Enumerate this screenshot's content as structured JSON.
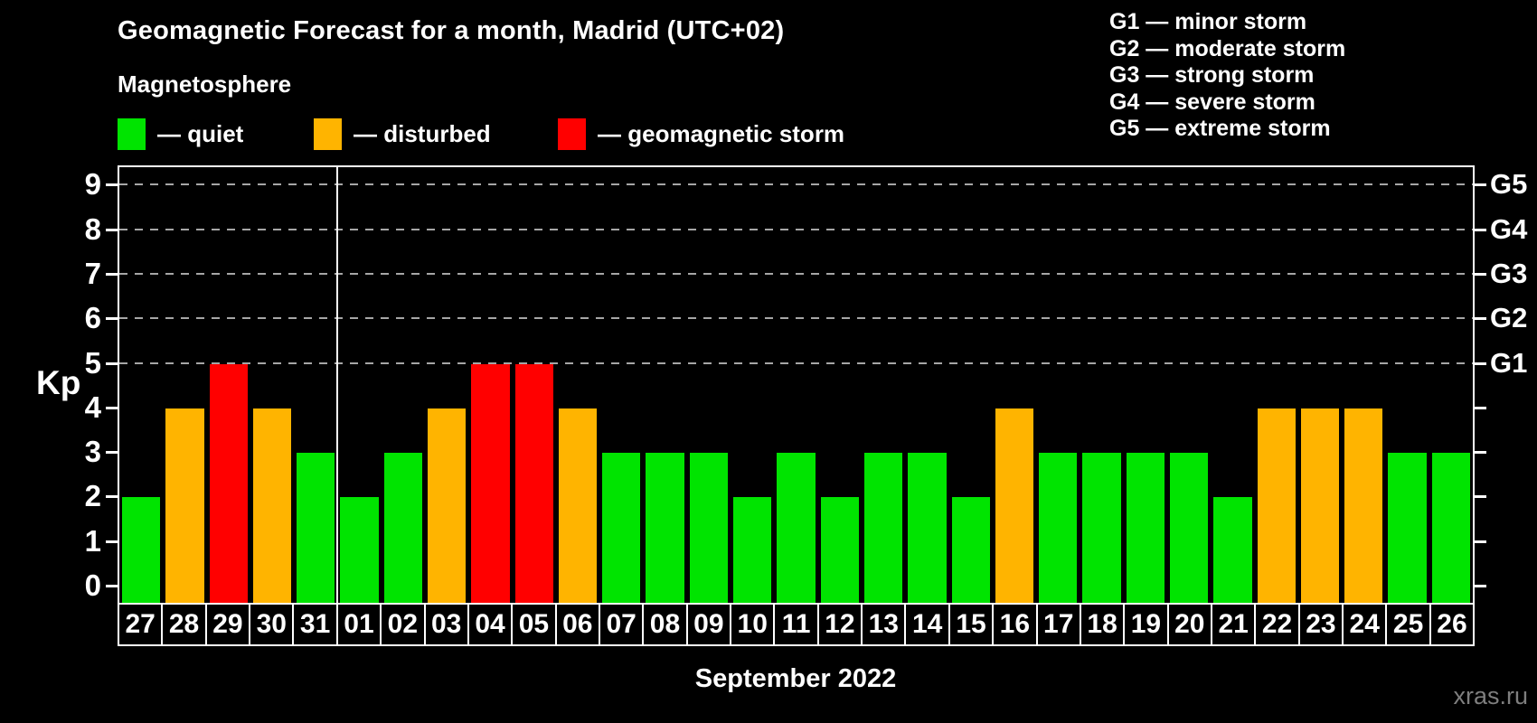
{
  "header": {
    "title": "Geomagnetic Forecast for a month, Madrid (UTC+02)",
    "subtitle": "Magnetosphere",
    "legend": [
      {
        "key": "quiet",
        "label": "— quiet",
        "color": "#00e400"
      },
      {
        "key": "disturbed",
        "label": "— disturbed",
        "color": "#ffb400"
      },
      {
        "key": "storm",
        "label": "— geomagnetic storm",
        "color": "#ff0000"
      }
    ],
    "g_legend": [
      "G1 — minor storm",
      "G2 — moderate storm",
      "G3 — strong storm",
      "G4 — severe storm",
      "G5 — extreme storm"
    ]
  },
  "chart_data": {
    "type": "bar",
    "title": "Geomagnetic Forecast for a month, Madrid (UTC+02)",
    "ylabel": "Kp",
    "xlabel": "September 2022",
    "ylim": [
      0,
      9
    ],
    "yticks": [
      0,
      1,
      2,
      3,
      4,
      5,
      6,
      7,
      8,
      9
    ],
    "gridlines_kp": [
      5,
      6,
      7,
      8,
      9
    ],
    "grid": "dashed",
    "right_axis_labels": [
      {
        "label": "G1",
        "kp": 5
      },
      {
        "label": "G2",
        "kp": 6
      },
      {
        "label": "G3",
        "kp": 7
      },
      {
        "label": "G4",
        "kp": 8
      },
      {
        "label": "G5",
        "kp": 9
      }
    ],
    "categories": [
      "27",
      "28",
      "29",
      "30",
      "31",
      "01",
      "02",
      "03",
      "04",
      "05",
      "06",
      "07",
      "08",
      "09",
      "10",
      "11",
      "12",
      "13",
      "14",
      "15",
      "16",
      "17",
      "18",
      "19",
      "20",
      "21",
      "22",
      "23",
      "24",
      "25",
      "26"
    ],
    "series": [
      {
        "name": "Kp forecast",
        "values": [
          2,
          4,
          5,
          4,
          3,
          2,
          3,
          4,
          5,
          5,
          4,
          3,
          3,
          3,
          2,
          3,
          2,
          3,
          3,
          2,
          4,
          3,
          3,
          3,
          3,
          2,
          4,
          4,
          4,
          3,
          3
        ]
      }
    ],
    "statuses": [
      "quiet",
      "disturbed",
      "storm",
      "disturbed",
      "quiet",
      "quiet",
      "quiet",
      "disturbed",
      "storm",
      "storm",
      "disturbed",
      "quiet",
      "quiet",
      "quiet",
      "quiet",
      "quiet",
      "quiet",
      "quiet",
      "quiet",
      "quiet",
      "disturbed",
      "quiet",
      "quiet",
      "quiet",
      "quiet",
      "quiet",
      "disturbed",
      "disturbed",
      "disturbed",
      "quiet",
      "quiet"
    ],
    "status_colors": {
      "quiet": "#00e400",
      "disturbed": "#ffb400",
      "storm": "#ff0000"
    },
    "month_separator_after_index": 4,
    "legend_position": "top-left"
  },
  "footer": {
    "caption": "September 2022",
    "watermark": "xras.ru"
  }
}
